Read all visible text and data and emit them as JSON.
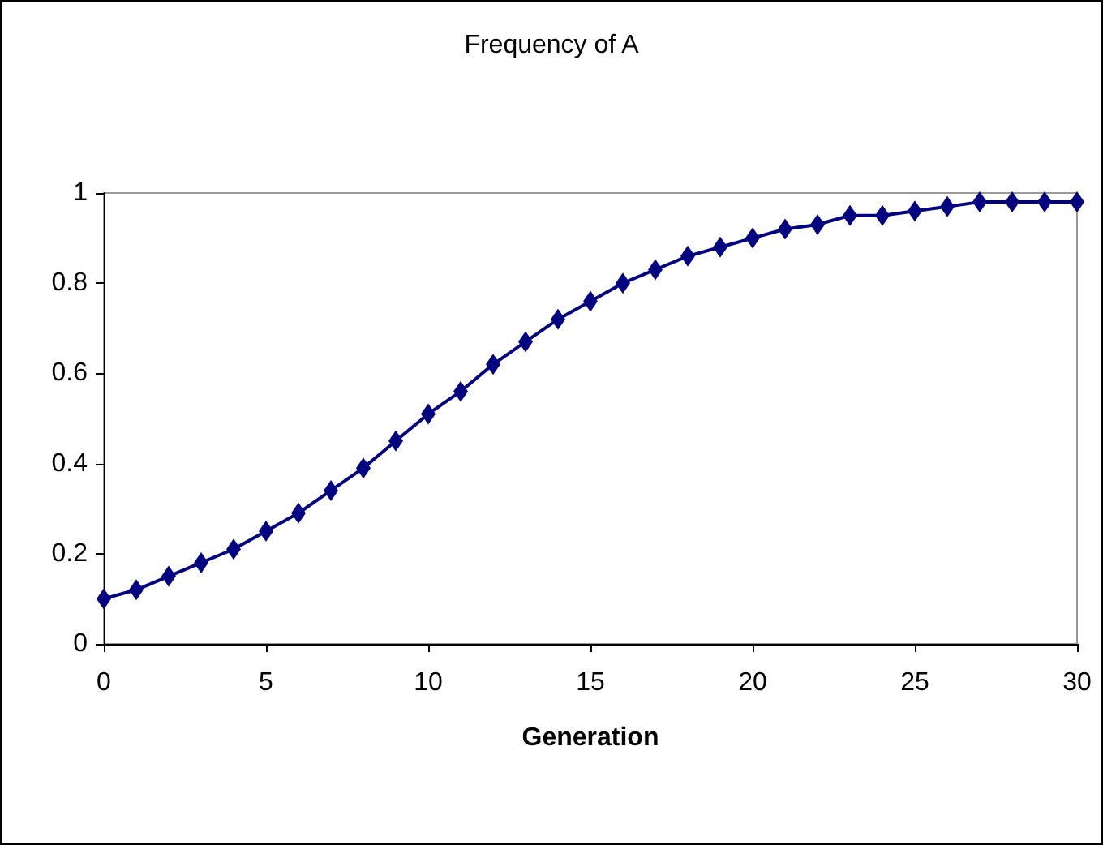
{
  "chart_data": {
    "type": "line",
    "title": "Frequency of A",
    "xlabel": "Generation",
    "x": [
      0,
      1,
      2,
      3,
      4,
      5,
      6,
      7,
      8,
      9,
      10,
      11,
      12,
      13,
      14,
      15,
      16,
      17,
      18,
      19,
      20,
      21,
      22,
      23,
      24,
      25,
      26,
      27,
      28,
      29,
      30
    ],
    "series": [
      {
        "color": "#000080",
        "values": [
          0.1,
          0.12,
          0.15,
          0.18,
          0.21,
          0.25,
          0.29,
          0.34,
          0.39,
          0.45,
          0.51,
          0.56,
          0.62,
          0.67,
          0.72,
          0.76,
          0.8,
          0.83,
          0.86,
          0.88,
          0.9,
          0.92,
          0.93,
          0.95,
          0.95,
          0.96,
          0.97,
          0.98,
          0.98,
          0.98,
          0.98
        ]
      }
    ],
    "xlim": [
      0,
      30
    ],
    "xticks": [
      0,
      5,
      10,
      15,
      20,
      25,
      30
    ],
    "ylim": [
      0,
      1
    ],
    "yticks": [
      0,
      0.2,
      0.4,
      0.6,
      0.8,
      1
    ],
    "grid": false,
    "marker": "diamond",
    "line_style": "solid"
  }
}
